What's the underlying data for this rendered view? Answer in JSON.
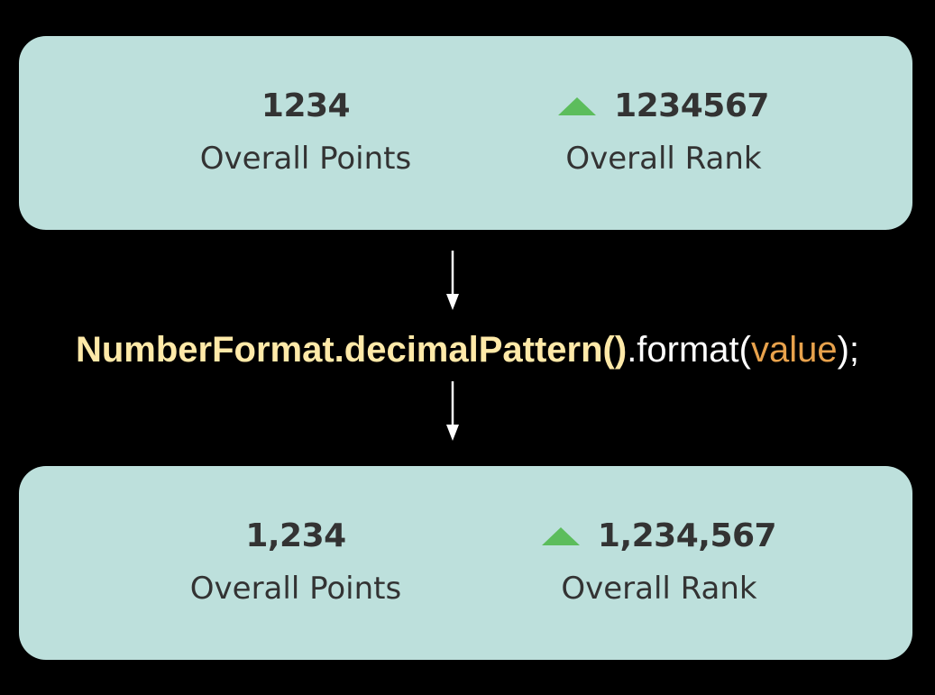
{
  "before": {
    "points_value": "1234",
    "points_label": "Overall Points",
    "rank_value": "1234567",
    "rank_label": "Overall Rank",
    "rank_icon": "triangle-up-icon"
  },
  "code": {
    "call": "NumberFormat.decimalPattern()",
    "method": ".format(",
    "arg": "value",
    "end": ");"
  },
  "after": {
    "points_value": "1,234",
    "points_label": "Overall Points",
    "rank_value": "1,234,567",
    "rank_label": "Overall Rank",
    "rank_icon": "triangle-up-icon"
  },
  "colors": {
    "background": "#000000",
    "card": "#bde0dc",
    "card_text": "#333333",
    "trend_up": "#5cbd5c",
    "code_call": "#ffe9a8",
    "code_arg": "#e8a24c",
    "code_plain": "#ffffff",
    "arrow": "#ffffff"
  }
}
